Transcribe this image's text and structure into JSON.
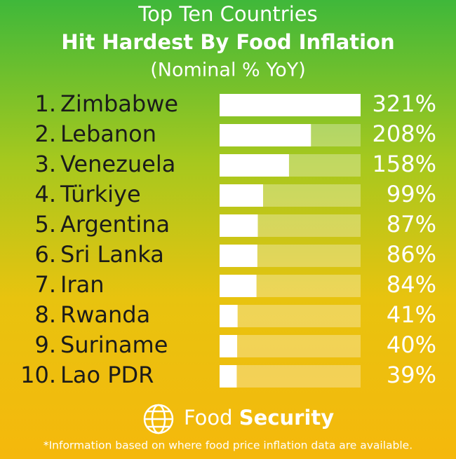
{
  "chart_data": {
    "type": "bar",
    "title": "Top Ten Countries",
    "subtitle": "Hit Hardest By Food Inflation",
    "unit_note": "(Nominal % YoY)",
    "ranks": [
      "1.",
      "2.",
      "3.",
      "4.",
      "5.",
      "6.",
      "7.",
      "8.",
      "9.",
      "10."
    ],
    "categories": [
      "Zimbabwe",
      "Lebanon",
      "Venezuela",
      "Türkiye",
      "Argentina",
      "Sri Lanka",
      "Iran",
      "Rwanda",
      "Suriname",
      "Lao PDR"
    ],
    "values": [
      321,
      208,
      158,
      99,
      87,
      86,
      84,
      41,
      40,
      39
    ],
    "value_labels": [
      "321%",
      "208%",
      "158%",
      "99%",
      "87%",
      "86%",
      "84%",
      "41%",
      "40%",
      "39%"
    ],
    "xlim": [
      0,
      321
    ],
    "color": "#ffffff",
    "brand_light": "Food",
    "brand_bold": "Security",
    "footnote": "*Information based on where food price inflation data are available."
  }
}
